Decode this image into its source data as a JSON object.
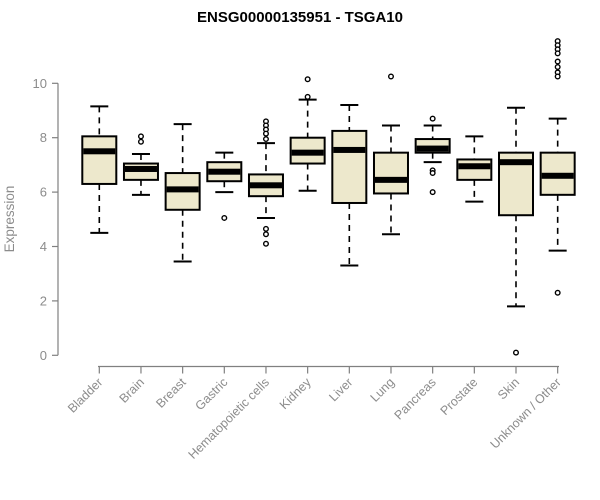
{
  "chart_data": {
    "type": "boxplot",
    "title": "ENSG00000135951 - TSGA10",
    "xlabel": "",
    "ylabel": "Expression",
    "ylim": [
      0,
      11.9
    ],
    "yticks": [
      0,
      2,
      4,
      6,
      8,
      10
    ],
    "grid": false,
    "categories": [
      "Bladder",
      "Brain",
      "Breast",
      "Gastric",
      "Hematopoietic cells",
      "Kidney",
      "Liver",
      "Lung",
      "Pancreas",
      "Prostate",
      "Skin",
      "Unknown / Other"
    ],
    "series": [
      {
        "category": "Bladder",
        "low": 4.5,
        "q1": 6.3,
        "median": 7.5,
        "q3": 8.05,
        "high": 9.15,
        "outliers": []
      },
      {
        "category": "Brain",
        "low": 5.9,
        "q1": 6.45,
        "median": 6.85,
        "q3": 7.05,
        "high": 7.4,
        "outliers": [
          8.05,
          7.85
        ]
      },
      {
        "category": "Breast",
        "low": 3.45,
        "q1": 5.35,
        "median": 6.1,
        "q3": 6.7,
        "high": 8.5,
        "outliers": []
      },
      {
        "category": "Gastric",
        "low": 6.0,
        "q1": 6.4,
        "median": 6.75,
        "q3": 7.1,
        "high": 7.45,
        "outliers": [
          5.05
        ]
      },
      {
        "category": "Hematopoietic cells",
        "low": 5.05,
        "q1": 5.85,
        "median": 6.25,
        "q3": 6.65,
        "high": 7.8,
        "outliers": [
          8.6,
          8.45,
          8.3,
          8.15,
          7.95,
          4.65,
          4.45,
          4.1
        ]
      },
      {
        "category": "Kidney",
        "low": 6.05,
        "q1": 7.05,
        "median": 7.45,
        "q3": 8.0,
        "high": 9.4,
        "outliers": [
          10.15,
          9.5
        ]
      },
      {
        "category": "Liver",
        "low": 3.3,
        "q1": 5.6,
        "median": 7.55,
        "q3": 8.25,
        "high": 9.2,
        "outliers": []
      },
      {
        "category": "Lung",
        "low": 4.45,
        "q1": 5.95,
        "median": 6.45,
        "q3": 7.45,
        "high": 8.45,
        "outliers": [
          10.25
        ]
      },
      {
        "category": "Pancreas",
        "low": 7.1,
        "q1": 7.45,
        "median": 7.6,
        "q3": 7.95,
        "high": 8.45,
        "outliers": [
          8.7,
          6.8,
          6.7,
          6.0
        ]
      },
      {
        "category": "Prostate",
        "low": 5.65,
        "q1": 6.45,
        "median": 6.95,
        "q3": 7.2,
        "high": 8.05,
        "outliers": []
      },
      {
        "category": "Skin",
        "low": 1.8,
        "q1": 5.15,
        "median": 7.1,
        "q3": 7.45,
        "high": 9.1,
        "outliers": [
          0.1
        ]
      },
      {
        "category": "Unknown / Other",
        "low": 3.85,
        "q1": 5.9,
        "median": 6.6,
        "q3": 7.45,
        "high": 8.7,
        "outliers": [
          11.55,
          11.4,
          11.25,
          11.1,
          10.8,
          10.6,
          10.4,
          10.25,
          2.3
        ]
      }
    ],
    "colors": {
      "box_fill": "#ede8cc",
      "line": "#000000",
      "axis_line": "#808080",
      "axis_text": "#8c8c8c",
      "title": "#000000"
    }
  }
}
